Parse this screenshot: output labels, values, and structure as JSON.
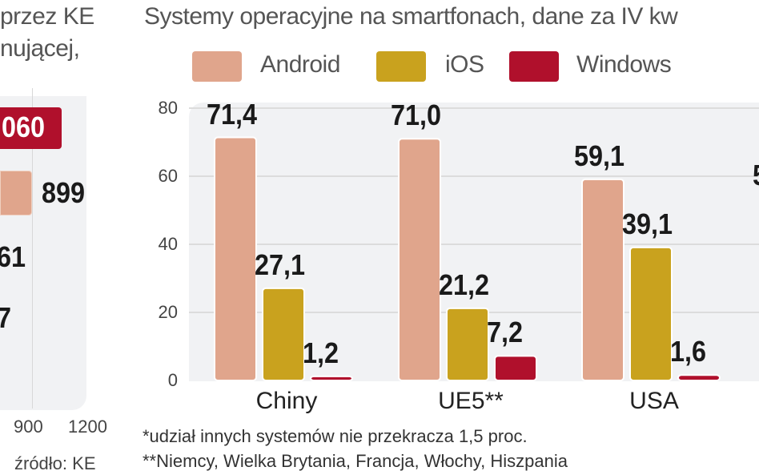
{
  "left_fragment": {
    "subtitle_lines": [
      "przez KE",
      "nującej,"
    ],
    "value_labels": [
      "060",
      "899",
      "61",
      "7"
    ],
    "x_ticks": [
      "900",
      "1200"
    ],
    "source": "źródło: KE"
  },
  "chart_data": {
    "type": "bar",
    "title": "Systemy operacyjne na smartfonach, dane za IV kw",
    "categories": [
      "Chiny",
      "UE5**",
      "USA"
    ],
    "series": [
      {
        "name": "Android",
        "color": "#e0a58c",
        "values": [
          71.4,
          71.0,
          59.1
        ],
        "labels": [
          "71,4",
          "71,0",
          "59,1"
        ]
      },
      {
        "name": "iOS",
        "color": "#c9a21e",
        "values": [
          27.1,
          21.2,
          39.1
        ],
        "labels": [
          "27,1",
          "21,2",
          "39,1"
        ]
      },
      {
        "name": "Windows",
        "color": "#b0102c",
        "values": [
          1.2,
          7.2,
          1.6
        ],
        "labels": [
          "1,2",
          "7,2",
          "1,6"
        ]
      }
    ],
    "ylim": [
      0,
      80
    ],
    "y_ticks": [
      "0",
      "20",
      "40",
      "60",
      "80"
    ],
    "grid": true,
    "legend": "top",
    "partial_label": "5",
    "footnotes": [
      "*udział innych systemów nie przekracza 1,5 proc.",
      "**Niemcy, Wielka Brytania, Francja, Włochy, Hiszpania"
    ]
  }
}
